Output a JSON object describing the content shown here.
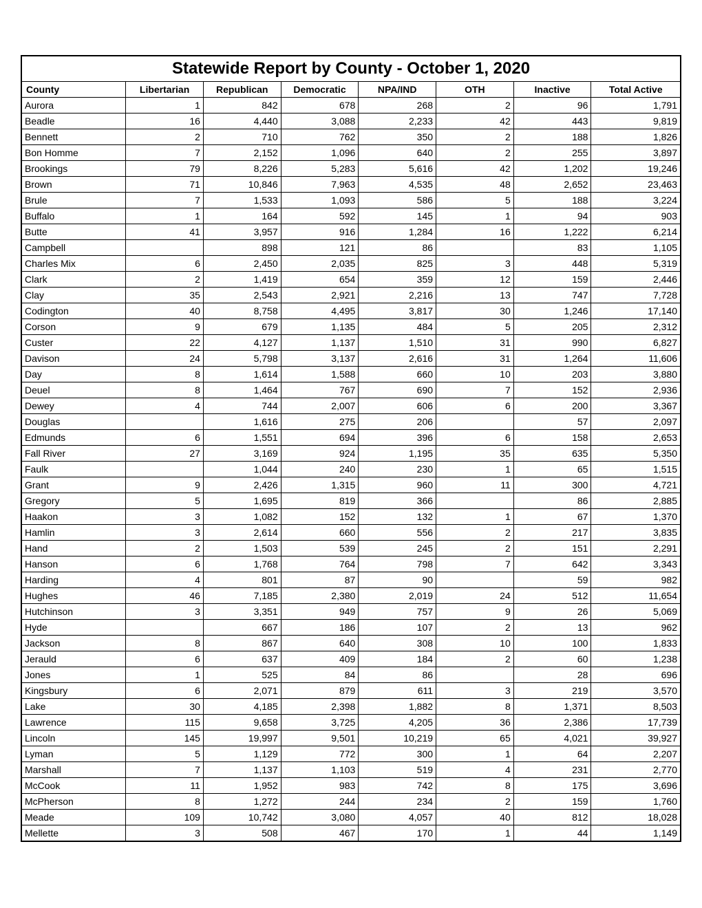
{
  "title": "Statewide Report by County - October 1, 2020",
  "columns": [
    "County",
    "Libertarian",
    "Republican",
    "Democratic",
    "NPA/IND",
    "OTH",
    "Inactive",
    "Total Active"
  ],
  "rows": [
    [
      "Aurora",
      "1",
      "842",
      "678",
      "268",
      "2",
      "96",
      "1,791"
    ],
    [
      "Beadle",
      "16",
      "4,440",
      "3,088",
      "2,233",
      "42",
      "443",
      "9,819"
    ],
    [
      "Bennett",
      "2",
      "710",
      "762",
      "350",
      "2",
      "188",
      "1,826"
    ],
    [
      "Bon Homme",
      "7",
      "2,152",
      "1,096",
      "640",
      "2",
      "255",
      "3,897"
    ],
    [
      "Brookings",
      "79",
      "8,226",
      "5,283",
      "5,616",
      "42",
      "1,202",
      "19,246"
    ],
    [
      "Brown",
      "71",
      "10,846",
      "7,963",
      "4,535",
      "48",
      "2,652",
      "23,463"
    ],
    [
      "Brule",
      "7",
      "1,533",
      "1,093",
      "586",
      "5",
      "188",
      "3,224"
    ],
    [
      "Buffalo",
      "1",
      "164",
      "592",
      "145",
      "1",
      "94",
      "903"
    ],
    [
      "Butte",
      "41",
      "3,957",
      "916",
      "1,284",
      "16",
      "1,222",
      "6,214"
    ],
    [
      "Campbell",
      "",
      "898",
      "121",
      "86",
      "",
      "83",
      "1,105"
    ],
    [
      "Charles Mix",
      "6",
      "2,450",
      "2,035",
      "825",
      "3",
      "448",
      "5,319"
    ],
    [
      "Clark",
      "2",
      "1,419",
      "654",
      "359",
      "12",
      "159",
      "2,446"
    ],
    [
      "Clay",
      "35",
      "2,543",
      "2,921",
      "2,216",
      "13",
      "747",
      "7,728"
    ],
    [
      "Codington",
      "40",
      "8,758",
      "4,495",
      "3,817",
      "30",
      "1,246",
      "17,140"
    ],
    [
      "Corson",
      "9",
      "679",
      "1,135",
      "484",
      "5",
      "205",
      "2,312"
    ],
    [
      "Custer",
      "22",
      "4,127",
      "1,137",
      "1,510",
      "31",
      "990",
      "6,827"
    ],
    [
      "Davison",
      "24",
      "5,798",
      "3,137",
      "2,616",
      "31",
      "1,264",
      "11,606"
    ],
    [
      "Day",
      "8",
      "1,614",
      "1,588",
      "660",
      "10",
      "203",
      "3,880"
    ],
    [
      "Deuel",
      "8",
      "1,464",
      "767",
      "690",
      "7",
      "152",
      "2,936"
    ],
    [
      "Dewey",
      "4",
      "744",
      "2,007",
      "606",
      "6",
      "200",
      "3,367"
    ],
    [
      "Douglas",
      "",
      "1,616",
      "275",
      "206",
      "",
      "57",
      "2,097"
    ],
    [
      "Edmunds",
      "6",
      "1,551",
      "694",
      "396",
      "6",
      "158",
      "2,653"
    ],
    [
      "Fall River",
      "27",
      "3,169",
      "924",
      "1,195",
      "35",
      "635",
      "5,350"
    ],
    [
      "Faulk",
      "",
      "1,044",
      "240",
      "230",
      "1",
      "65",
      "1,515"
    ],
    [
      "Grant",
      "9",
      "2,426",
      "1,315",
      "960",
      "11",
      "300",
      "4,721"
    ],
    [
      "Gregory",
      "5",
      "1,695",
      "819",
      "366",
      "",
      "86",
      "2,885"
    ],
    [
      "Haakon",
      "3",
      "1,082",
      "152",
      "132",
      "1",
      "67",
      "1,370"
    ],
    [
      "Hamlin",
      "3",
      "2,614",
      "660",
      "556",
      "2",
      "217",
      "3,835"
    ],
    [
      "Hand",
      "2",
      "1,503",
      "539",
      "245",
      "2",
      "151",
      "2,291"
    ],
    [
      "Hanson",
      "6",
      "1,768",
      "764",
      "798",
      "7",
      "642",
      "3,343"
    ],
    [
      "Harding",
      "4",
      "801",
      "87",
      "90",
      "",
      "59",
      "982"
    ],
    [
      "Hughes",
      "46",
      "7,185",
      "2,380",
      "2,019",
      "24",
      "512",
      "11,654"
    ],
    [
      "Hutchinson",
      "3",
      "3,351",
      "949",
      "757",
      "9",
      "26",
      "5,069"
    ],
    [
      "Hyde",
      "",
      "667",
      "186",
      "107",
      "2",
      "13",
      "962"
    ],
    [
      "Jackson",
      "8",
      "867",
      "640",
      "308",
      "10",
      "100",
      "1,833"
    ],
    [
      "Jerauld",
      "6",
      "637",
      "409",
      "184",
      "2",
      "60",
      "1,238"
    ],
    [
      "Jones",
      "1",
      "525",
      "84",
      "86",
      "",
      "28",
      "696"
    ],
    [
      "Kingsbury",
      "6",
      "2,071",
      "879",
      "611",
      "3",
      "219",
      "3,570"
    ],
    [
      "Lake",
      "30",
      "4,185",
      "2,398",
      "1,882",
      "8",
      "1,371",
      "8,503"
    ],
    [
      "Lawrence",
      "115",
      "9,658",
      "3,725",
      "4,205",
      "36",
      "2,386",
      "17,739"
    ],
    [
      "Lincoln",
      "145",
      "19,997",
      "9,501",
      "10,219",
      "65",
      "4,021",
      "39,927"
    ],
    [
      "Lyman",
      "5",
      "1,129",
      "772",
      "300",
      "1",
      "64",
      "2,207"
    ],
    [
      "Marshall",
      "7",
      "1,137",
      "1,103",
      "519",
      "4",
      "231",
      "2,770"
    ],
    [
      "McCook",
      "11",
      "1,952",
      "983",
      "742",
      "8",
      "175",
      "3,696"
    ],
    [
      "McPherson",
      "8",
      "1,272",
      "244",
      "234",
      "2",
      "159",
      "1,760"
    ],
    [
      "Meade",
      "109",
      "10,742",
      "3,080",
      "4,057",
      "40",
      "812",
      "18,028"
    ],
    [
      "Mellette",
      "3",
      "508",
      "467",
      "170",
      "1",
      "44",
      "1,149"
    ]
  ]
}
